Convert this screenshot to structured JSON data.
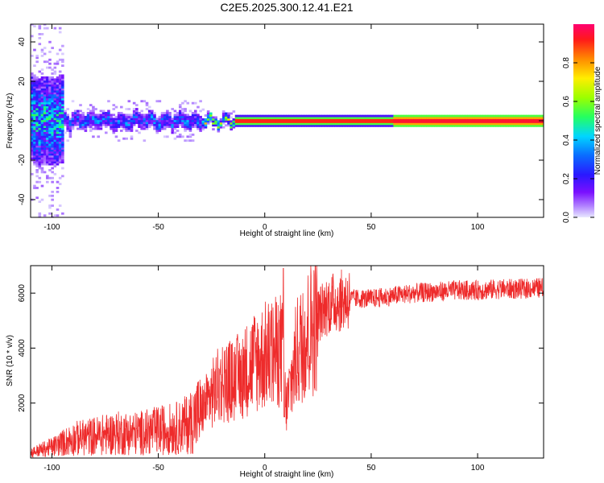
{
  "title": "C2E5.2025.300.12.41.E21",
  "colors": {
    "snr_line": "#ee2b2b",
    "axis": "#000000",
    "background": "#ffffff",
    "colormap": [
      "#e8e8ff",
      "#b080ff",
      "#7a10ff",
      "#2a18ff",
      "#0a6cff",
      "#00d6ff",
      "#25ff60",
      "#9cff00",
      "#ffee00",
      "#ff8a00",
      "#ff1a1a",
      "#ff0070"
    ]
  },
  "chart_data": [
    {
      "id": "spectrogram",
      "type": "heatmap",
      "xlabel": "Height of straight line (km)",
      "ylabel": "Frequency (Hz)",
      "xlim": [
        -110,
        131
      ],
      "ylim": [
        -49,
        49
      ],
      "xticks": [
        -100,
        -50,
        0,
        50,
        100
      ],
      "yticks": [
        -40,
        -20,
        0,
        20,
        40
      ],
      "colorbar": {
        "label": "Normalized spectral amplitude",
        "range": [
          0,
          1
        ],
        "ticks": [
          0.0,
          0.2,
          0.4,
          0.6,
          0.8
        ]
      },
      "description_segments": [
        {
          "x_range": [
            -110,
            -95
          ],
          "spread_hz": 45,
          "core_amplitude": 0.45
        },
        {
          "x_range": [
            -95,
            -30
          ],
          "spread_hz": 8,
          "core_amplitude": 0.35
        },
        {
          "x_range": [
            -30,
            -15
          ],
          "spread_hz": 5,
          "core_amplitude": 0.6
        },
        {
          "x_range": [
            -15,
            131
          ],
          "spread_hz": 2,
          "core_amplitude": 0.95
        }
      ]
    },
    {
      "id": "snr",
      "type": "line",
      "xlabel": "Height of straight line (km)",
      "ylabel": "SNR (10 * v/v)",
      "xlim": [
        -110,
        131
      ],
      "ylim": [
        0,
        7000
      ],
      "xticks": [
        -100,
        -50,
        0,
        50,
        100
      ],
      "yticks": [
        2000,
        4000,
        6000
      ],
      "series": [
        {
          "name": "SNR",
          "x": [
            -110,
            -100,
            -90,
            -80,
            -70,
            -60,
            -50,
            -40,
            -35,
            -30,
            -25,
            -20,
            -15,
            -10,
            -5,
            0,
            5,
            8,
            9,
            10,
            15,
            20,
            25,
            30,
            40,
            50,
            60,
            70,
            80,
            90,
            100,
            110,
            120,
            131
          ],
          "y": [
            200,
            400,
            700,
            800,
            900,
            900,
            1000,
            1100,
            1300,
            1700,
            2300,
            2800,
            2800,
            3100,
            3500,
            3700,
            3800,
            4000,
            3000,
            1800,
            3800,
            4500,
            5200,
            5600,
            5800,
            5800,
            5900,
            6000,
            6050,
            6100,
            6100,
            6150,
            6150,
            6200
          ]
        }
      ]
    }
  ]
}
